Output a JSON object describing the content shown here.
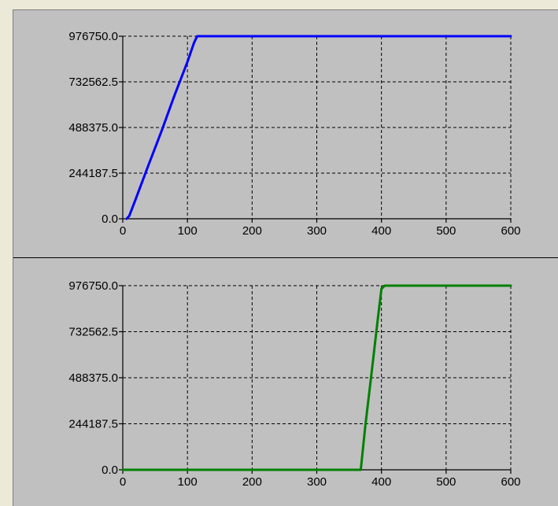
{
  "chart_data": [
    {
      "type": "line",
      "title": "",
      "xlabel": "",
      "ylabel": "",
      "xlim": [
        0,
        600
      ],
      "ylim": [
        0.0,
        976750.0
      ],
      "x_ticks": [
        "0",
        "100",
        "200",
        "300",
        "400",
        "500",
        "600"
      ],
      "y_ticks": [
        "0.0",
        "244187.5",
        "488375.0",
        "732562.5",
        "976750.0"
      ],
      "grid": true,
      "series": [
        {
          "color": "#0000ff",
          "x": [
            6,
            10,
            20,
            40,
            60,
            80,
            100,
            110,
            115,
            120,
            600
          ],
          "y": [
            0,
            15000,
            105000,
            290000,
            470000,
            660000,
            840000,
            940000,
            976750,
            976750,
            976750
          ]
        }
      ]
    },
    {
      "type": "line",
      "title": "",
      "xlabel": "",
      "ylabel": "",
      "xlim": [
        0,
        600
      ],
      "ylim": [
        0.0,
        976750.0
      ],
      "x_ticks": [
        "0",
        "100",
        "200",
        "300",
        "400",
        "500",
        "600"
      ],
      "y_ticks": [
        "0.0",
        "244187.5",
        "488375.0",
        "732562.5",
        "976750.0"
      ],
      "grid": true,
      "series": [
        {
          "color": "#008000",
          "x": [
            0,
            368,
            375,
            385,
            395,
            400,
            405,
            600
          ],
          "y": [
            0,
            0,
            230000,
            520000,
            820000,
            960000,
            976750,
            976750
          ]
        }
      ]
    }
  ]
}
